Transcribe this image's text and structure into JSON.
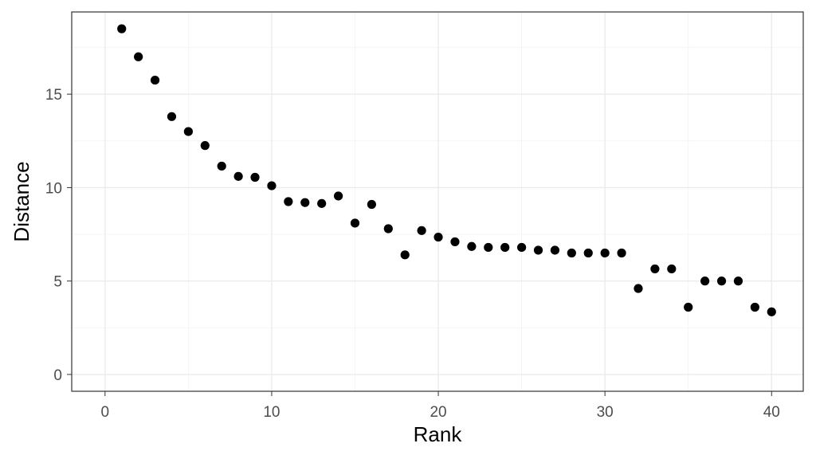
{
  "chart_data": {
    "type": "scatter",
    "xlabel": "Rank",
    "ylabel": "Distance",
    "xlim": [
      -2,
      41.9
    ],
    "ylim": [
      -0.9,
      19.4
    ],
    "x_ticks": [
      0,
      10,
      20,
      30,
      40
    ],
    "y_ticks": [
      0,
      5,
      10,
      15
    ],
    "x_minor": [
      5,
      15,
      25,
      35
    ],
    "y_minor": [
      2.5,
      7.5,
      12.5,
      17.5
    ],
    "grid": true,
    "point_color": "#000000",
    "points": [
      {
        "x": 1,
        "y": 18.5
      },
      {
        "x": 2,
        "y": 17.0
      },
      {
        "x": 3,
        "y": 15.75
      },
      {
        "x": 4,
        "y": 13.8
      },
      {
        "x": 5,
        "y": 13.0
      },
      {
        "x": 6,
        "y": 12.25
      },
      {
        "x": 7,
        "y": 11.15
      },
      {
        "x": 8,
        "y": 10.6
      },
      {
        "x": 9,
        "y": 10.55
      },
      {
        "x": 10,
        "y": 10.1
      },
      {
        "x": 11,
        "y": 9.25
      },
      {
        "x": 12,
        "y": 9.2
      },
      {
        "x": 13,
        "y": 9.15
      },
      {
        "x": 14,
        "y": 9.55
      },
      {
        "x": 15,
        "y": 8.1
      },
      {
        "x": 16,
        "y": 9.1
      },
      {
        "x": 17,
        "y": 7.8
      },
      {
        "x": 18,
        "y": 6.4
      },
      {
        "x": 19,
        "y": 7.7
      },
      {
        "x": 20,
        "y": 7.35
      },
      {
        "x": 21,
        "y": 7.1
      },
      {
        "x": 22,
        "y": 6.85
      },
      {
        "x": 23,
        "y": 6.8
      },
      {
        "x": 24,
        "y": 6.8
      },
      {
        "x": 25,
        "y": 6.8
      },
      {
        "x": 26,
        "y": 6.65
      },
      {
        "x": 27,
        "y": 6.65
      },
      {
        "x": 28,
        "y": 6.5
      },
      {
        "x": 29,
        "y": 6.5
      },
      {
        "x": 30,
        "y": 6.5
      },
      {
        "x": 31,
        "y": 6.5
      },
      {
        "x": 32,
        "y": 4.6
      },
      {
        "x": 33,
        "y": 5.65
      },
      {
        "x": 34,
        "y": 5.65
      },
      {
        "x": 35,
        "y": 3.6
      },
      {
        "x": 36,
        "y": 5.0
      },
      {
        "x": 37,
        "y": 5.0
      },
      {
        "x": 38,
        "y": 5.0
      },
      {
        "x": 39,
        "y": 3.6
      },
      {
        "x": 40,
        "y": 3.35
      }
    ]
  }
}
